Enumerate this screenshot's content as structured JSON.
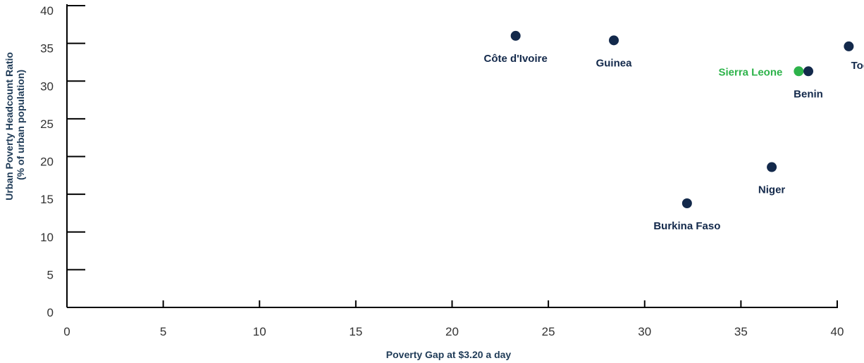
{
  "chart_data": {
    "type": "scatter",
    "title": "",
    "xlabel": "Poverty Gap at $3.20 a day",
    "ylabel_lines": [
      "Urban Poverty Headcount Ratio",
      "(% of urban population)"
    ],
    "xlim": [
      0,
      40
    ],
    "ylim": [
      0,
      40
    ],
    "x_ticks": [
      0,
      5,
      10,
      15,
      20,
      25,
      30,
      35,
      40
    ],
    "y_ticks": [
      0,
      5,
      10,
      15,
      20,
      25,
      30,
      35,
      40
    ],
    "grid": false,
    "colors": {
      "default": "#13294b",
      "highlight": "#2db34a"
    },
    "points": [
      {
        "label": "Côte d'Ivoire",
        "x": 23.3,
        "y": 36.0,
        "highlight": false,
        "label_pos": "below"
      },
      {
        "label": "Guinea",
        "x": 28.4,
        "y": 35.4,
        "highlight": false,
        "label_pos": "below"
      },
      {
        "label": "Togo",
        "x": 40.6,
        "y": 34.6,
        "highlight": false,
        "label_pos": "below-right"
      },
      {
        "label": "Sierra Leone",
        "x": 38.0,
        "y": 31.3,
        "highlight": true,
        "label_pos": "left"
      },
      {
        "label": "Benin",
        "x": 38.5,
        "y": 31.3,
        "highlight": false,
        "label_pos": "below"
      },
      {
        "label": "Niger",
        "x": 36.6,
        "y": 18.6,
        "highlight": false,
        "label_pos": "below"
      },
      {
        "label": "Burkina Faso",
        "x": 32.2,
        "y": 13.8,
        "highlight": false,
        "label_pos": "below"
      }
    ]
  }
}
